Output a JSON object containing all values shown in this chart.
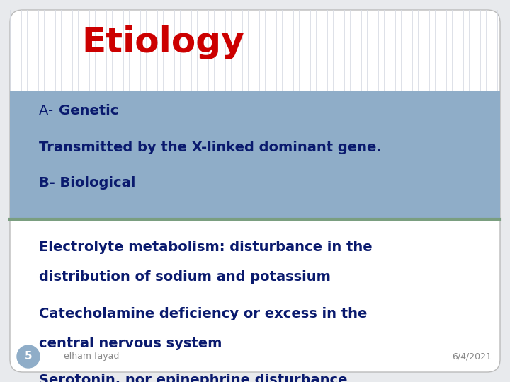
{
  "title": "Etiology",
  "title_color": "#cc0000",
  "title_fontsize": 36,
  "title_fontstyle": "normal",
  "title_fontweight": "bold",
  "bg_color": "#e8eaed",
  "slide_bg": "#ffffff",
  "stripe_color": "#d8dce4",
  "banner_bg": "#8fadc8",
  "divider_color": "#7a9e80",
  "text_color": "#0a1a6e",
  "footer_color": "#888888",
  "footer_fontsize": 9,
  "page_num": "5",
  "page_num_bg": "#8fadc8",
  "page_num_color": "white",
  "banner_lines": [
    {
      "prefix": "A- ",
      "prefix_bold": false,
      "text": "Genetic",
      "text_bold": true,
      "fontsize": 15
    },
    {
      "prefix": "",
      "prefix_bold": false,
      "text": "Transmitted by the X-linked dominant gene.",
      "text_bold": true,
      "fontsize": 15
    },
    {
      "prefix": "",
      "prefix_bold": false,
      "text": "B- Biological",
      "text_bold": true,
      "fontsize": 15
    }
  ],
  "body_lines": [
    {
      "text": "Electrolyte metabolism: disturbance in the",
      "fontsize": 15
    },
    {
      "text": "distribution of sodium and potassium",
      "fontsize": 15
    },
    {
      "text": "",
      "fontsize": 15
    },
    {
      "text": "Catecholamine deficiency or excess in the",
      "fontsize": 15
    },
    {
      "text": "central nervous system",
      "fontsize": 15
    },
    {
      "text": "",
      "fontsize": 15
    },
    {
      "text": "Serotonin, nor epinephrine disturbance",
      "fontsize": 15
    }
  ],
  "footer_left": "elham fayad",
  "footer_right": "6/4/2021"
}
